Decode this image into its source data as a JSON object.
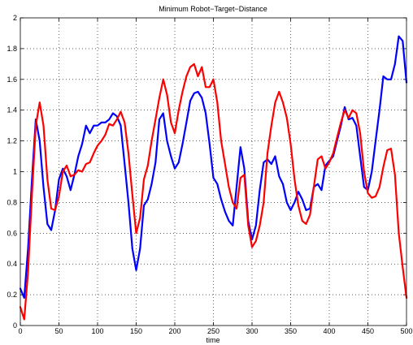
{
  "chart_data": {
    "type": "line",
    "title": "Minimum Robot−Target−Distance",
    "xlabel": "time",
    "ylabel": "",
    "xlim": [
      0,
      500
    ],
    "ylim": [
      0,
      2
    ],
    "xticks": [
      0,
      50,
      100,
      150,
      200,
      250,
      300,
      350,
      400,
      450,
      500
    ],
    "yticks": [
      0,
      0.2,
      0.4,
      0.6,
      0.8,
      1,
      1.2,
      1.4,
      1.6,
      1.8,
      2
    ],
    "ytick_labels": [
      "0",
      "0.2",
      "0.4",
      "0.6",
      "0.8",
      "1",
      "1.2",
      "1.4",
      "1.6",
      "1.8",
      "2"
    ],
    "grid": true,
    "grid_style": "dotted",
    "series": [
      {
        "color": "#0000ff",
        "x": [
          0,
          5,
          10,
          15,
          20,
          25,
          30,
          35,
          40,
          45,
          50,
          55,
          60,
          65,
          70,
          75,
          80,
          85,
          90,
          95,
          100,
          105,
          110,
          115,
          120,
          125,
          130,
          135,
          140,
          145,
          150,
          155,
          160,
          165,
          170,
          175,
          180,
          185,
          190,
          195,
          200,
          205,
          210,
          215,
          220,
          225,
          230,
          235,
          240,
          245,
          250,
          255,
          260,
          265,
          270,
          275,
          280,
          285,
          290,
          295,
          300,
          305,
          310,
          315,
          320,
          325,
          330,
          335,
          340,
          345,
          350,
          355,
          360,
          365,
          370,
          375,
          380,
          385,
          390,
          395,
          400,
          405,
          410,
          415,
          420,
          425,
          430,
          435,
          440,
          445,
          450,
          455,
          460,
          465,
          470,
          475,
          480,
          485,
          490,
          495,
          500
        ],
        "y": [
          0.24,
          0.18,
          0.5,
          0.95,
          1.34,
          1.2,
          0.9,
          0.66,
          0.62,
          0.75,
          0.95,
          1.02,
          0.97,
          0.88,
          0.98,
          1.1,
          1.18,
          1.3,
          1.25,
          1.3,
          1.3,
          1.32,
          1.32,
          1.34,
          1.38,
          1.36,
          1.3,
          1.05,
          0.8,
          0.5,
          0.36,
          0.5,
          0.78,
          0.82,
          0.92,
          1.06,
          1.34,
          1.38,
          1.2,
          1.1,
          1.02,
          1.06,
          1.18,
          1.32,
          1.46,
          1.51,
          1.52,
          1.48,
          1.38,
          1.18,
          0.96,
          0.92,
          0.82,
          0.74,
          0.68,
          0.65,
          0.9,
          1.16,
          1.02,
          0.68,
          0.56,
          0.65,
          0.88,
          1.06,
          1.08,
          1.05,
          1.1,
          0.97,
          0.92,
          0.8,
          0.75,
          0.8,
          0.87,
          0.82,
          0.75,
          0.76,
          0.9,
          0.92,
          0.88,
          1.04,
          1.07,
          1.1,
          1.2,
          1.3,
          1.42,
          1.34,
          1.35,
          1.3,
          1.1,
          0.9,
          0.88,
          1.0,
          1.2,
          1.4,
          1.62,
          1.6,
          1.6,
          1.7,
          1.88,
          1.85,
          1.58
        ]
      },
      {
        "color": "#ff0000",
        "x": [
          0,
          5,
          10,
          15,
          20,
          25,
          30,
          35,
          40,
          45,
          50,
          55,
          60,
          65,
          70,
          75,
          80,
          85,
          90,
          95,
          100,
          105,
          110,
          115,
          120,
          125,
          130,
          135,
          140,
          145,
          150,
          155,
          160,
          165,
          170,
          175,
          180,
          185,
          190,
          195,
          200,
          205,
          210,
          215,
          220,
          225,
          230,
          235,
          240,
          245,
          250,
          255,
          260,
          265,
          270,
          275,
          280,
          285,
          290,
          295,
          300,
          305,
          310,
          315,
          320,
          325,
          330,
          335,
          340,
          345,
          350,
          355,
          360,
          365,
          370,
          375,
          380,
          385,
          390,
          395,
          400,
          405,
          410,
          415,
          420,
          425,
          430,
          435,
          440,
          445,
          450,
          455,
          460,
          465,
          470,
          475,
          480,
          485,
          490,
          495,
          500
        ],
        "y": [
          0.12,
          0.04,
          0.35,
          0.85,
          1.3,
          1.45,
          1.3,
          0.95,
          0.76,
          0.75,
          0.84,
          1.0,
          1.04,
          0.97,
          0.98,
          1.01,
          1.0,
          1.05,
          1.06,
          1.12,
          1.17,
          1.2,
          1.24,
          1.31,
          1.3,
          1.34,
          1.39,
          1.32,
          1.12,
          0.85,
          0.6,
          0.7,
          0.95,
          1.04,
          1.2,
          1.34,
          1.48,
          1.6,
          1.5,
          1.32,
          1.25,
          1.4,
          1.52,
          1.62,
          1.68,
          1.7,
          1.62,
          1.68,
          1.55,
          1.55,
          1.6,
          1.45,
          1.2,
          1.05,
          0.9,
          0.8,
          0.76,
          0.96,
          0.98,
          0.65,
          0.51,
          0.55,
          0.65,
          0.8,
          1.12,
          1.3,
          1.45,
          1.52,
          1.45,
          1.35,
          1.18,
          0.95,
          0.78,
          0.68,
          0.66,
          0.72,
          0.9,
          1.08,
          1.1,
          1.02,
          1.06,
          1.12,
          1.22,
          1.32,
          1.4,
          1.35,
          1.4,
          1.38,
          1.25,
          1.0,
          0.86,
          0.83,
          0.84,
          0.9,
          1.03,
          1.14,
          1.15,
          0.98,
          0.6,
          0.38,
          0.18
        ]
      }
    ]
  }
}
